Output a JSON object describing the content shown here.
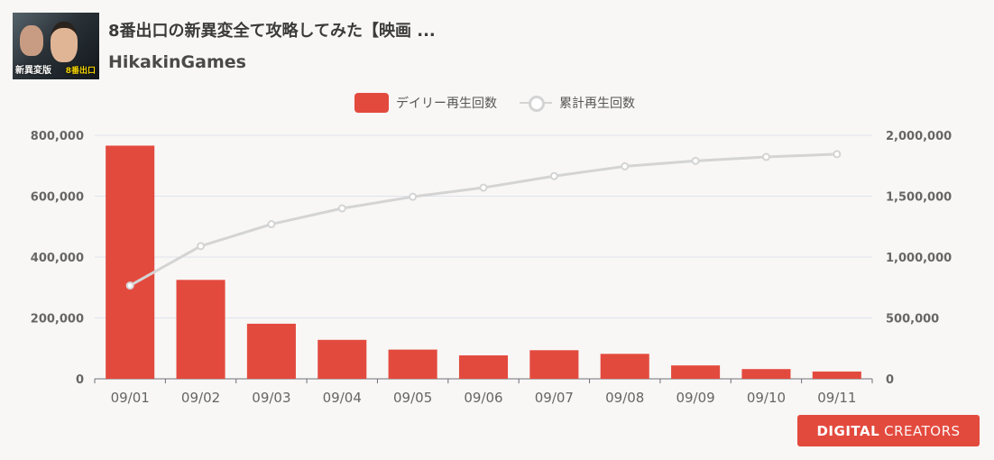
{
  "header": {
    "title": "8番出口の新異変全て攻略してみた【映画 ...",
    "channel": "HikakinGames",
    "thumbnail": {
      "caption": "新異変版",
      "logo_text": "8番出口"
    }
  },
  "brand": {
    "strong": "DIGITAL",
    "light": "CREATORS"
  },
  "colors": {
    "bar": "#e34a3e",
    "line": "#d4d4d4",
    "grid": "#dfe3ec",
    "background": "#f8f7f5"
  },
  "chart_data": {
    "type": "bar+line",
    "categories": [
      "09/01",
      "09/02",
      "09/03",
      "09/04",
      "09/05",
      "09/06",
      "09/07",
      "09/08",
      "09/09",
      "09/10",
      "09/11"
    ],
    "series": [
      {
        "name": "デイリー再生回数",
        "type": "bar",
        "axis": "left",
        "values": [
          766000,
          325000,
          181000,
          128000,
          96000,
          77000,
          94000,
          82000,
          44000,
          32000,
          24000
        ]
      },
      {
        "name": "累計再生回数",
        "type": "line",
        "axis": "right",
        "values": [
          766000,
          1090000,
          1270000,
          1400000,
          1495000,
          1570000,
          1665000,
          1745000,
          1790000,
          1822000,
          1845000
        ]
      }
    ],
    "y_left": {
      "min": 0,
      "max": 800000,
      "ticks": [
        "800,000",
        "600,000",
        "400,000",
        "200,000",
        "0"
      ]
    },
    "y_right": {
      "min": 0,
      "max": 2000000,
      "ticks": [
        "2,000,000",
        "1,500,000",
        "1,000,000",
        "500,000",
        "0"
      ]
    },
    "legend_position": "top-center",
    "grid": true
  }
}
